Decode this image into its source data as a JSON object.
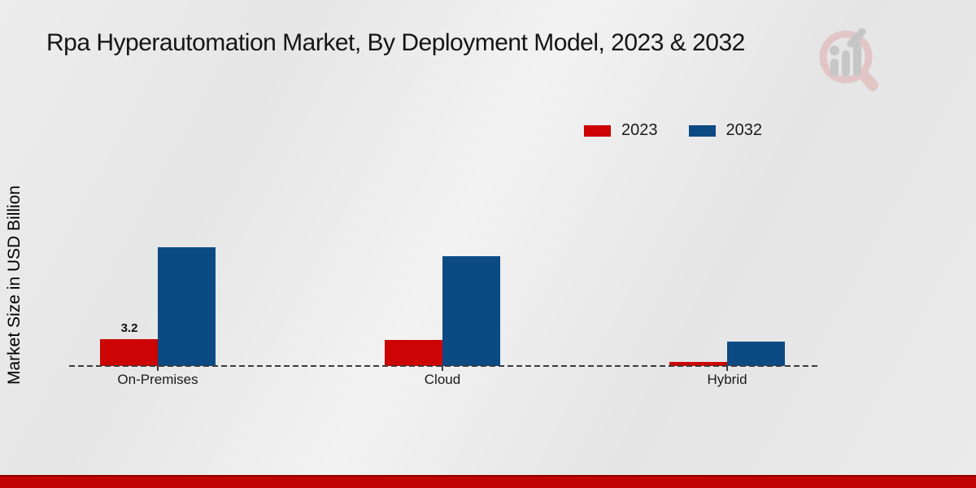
{
  "header": {
    "title": "Rpa Hyperautomation Market, By Deployment Model, 2023 & 2032"
  },
  "watermark": {
    "icon": "magnifier-bar-chart-logo",
    "glass_color": "#e2c6c6",
    "bars_color": "#c6c6c6"
  },
  "footer": {
    "bar_color": "#c00404"
  },
  "chart_data": {
    "type": "bar",
    "title": "Rpa Hyperautomation Market, By Deployment Model, 2023 & 2032",
    "xlabel": "",
    "ylabel": "Market Size in USD Billion",
    "categories": [
      "On-Premises",
      "Cloud",
      "Hybrid"
    ],
    "series": [
      {
        "name": "2023",
        "color": "#cc0404",
        "values": [
          3.2,
          3.1,
          0.5
        ]
      },
      {
        "name": "2032",
        "color": "#0c4a84",
        "values": [
          14.2,
          13.1,
          2.9
        ]
      }
    ],
    "data_labels": [
      {
        "series_index": 0,
        "category_index": 0,
        "text": "3.2"
      }
    ],
    "ylim": [
      0,
      16
    ],
    "grid": false,
    "legend_position": "top-right",
    "baseline_style": "dashed"
  }
}
